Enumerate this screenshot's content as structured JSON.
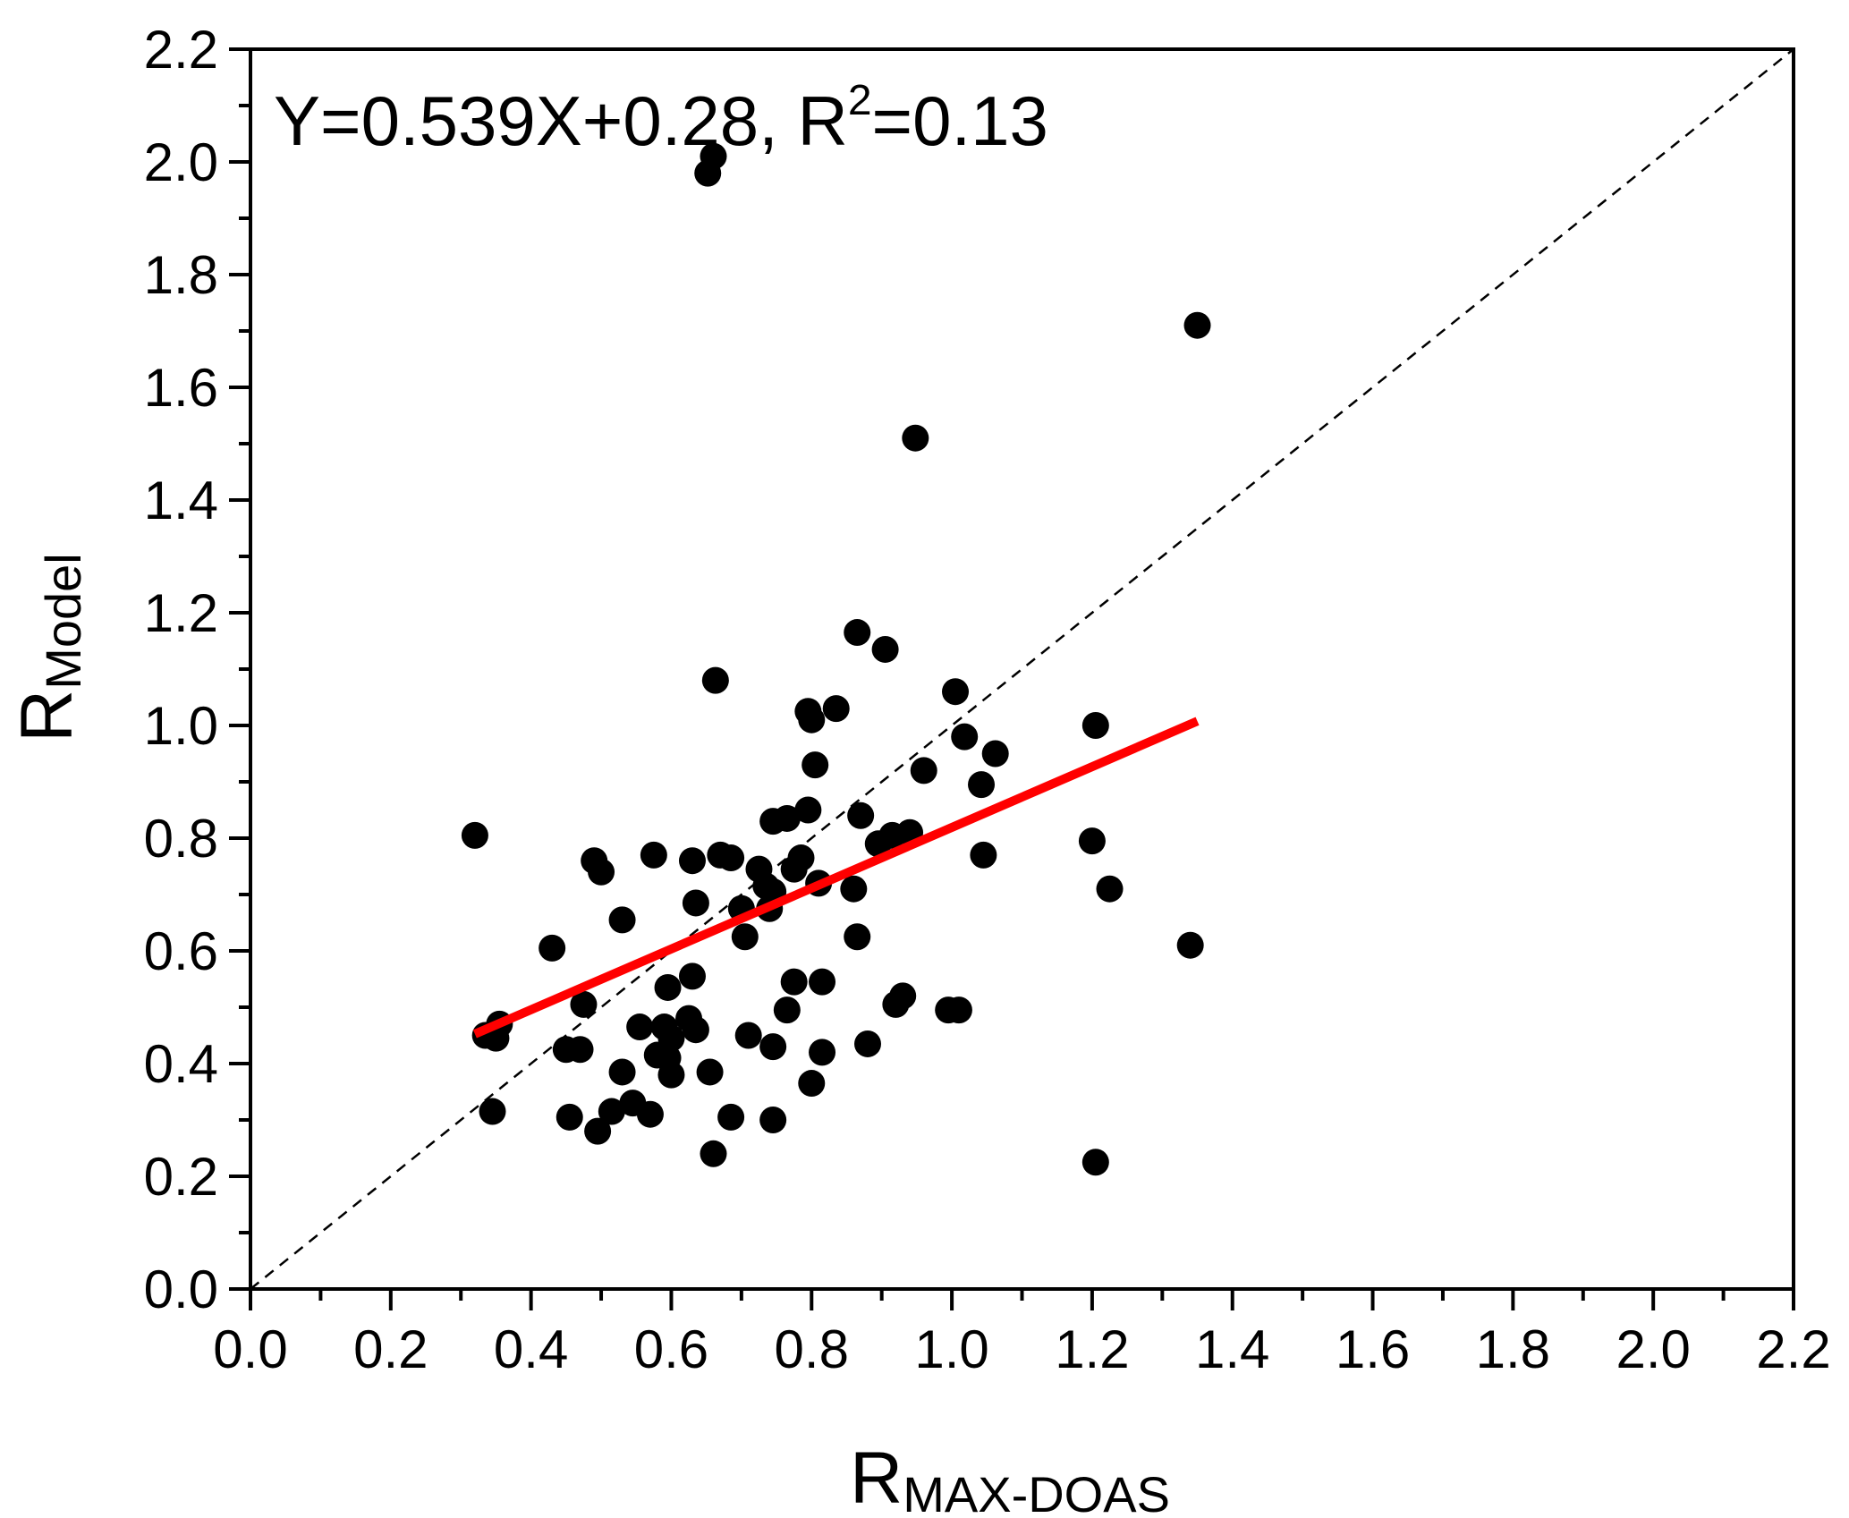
{
  "chart_data": {
    "type": "scatter",
    "title": "",
    "annotation": {
      "lead": "Y=0.539X+0.28, R",
      "superscript": "2",
      "tail": "=0.13"
    },
    "xlabel": {
      "main": "R",
      "subscript": "MAX-DOAS"
    },
    "ylabel": {
      "main": "R",
      "subscript": "Model"
    },
    "xlim": [
      0.0,
      2.2
    ],
    "ylim": [
      0.0,
      2.2
    ],
    "xticks": [
      "0.0",
      "0.2",
      "0.4",
      "0.6",
      "0.8",
      "1.0",
      "1.2",
      "1.4",
      "1.6",
      "1.8",
      "2.0",
      "2.2"
    ],
    "yticks": [
      "0.0",
      "0.2",
      "0.4",
      "0.6",
      "0.8",
      "1.0",
      "1.2",
      "1.4",
      "1.6",
      "1.8",
      "2.0",
      "2.2"
    ],
    "grid": false,
    "legend": "none",
    "colors": {
      "points": "#000000",
      "fit_line": "#ff0000",
      "identity_line": "#000000"
    },
    "fit_line": {
      "slope": 0.539,
      "intercept": 0.28,
      "x_range": [
        0.32,
        1.35
      ]
    },
    "identity_line": {
      "style": "dashed",
      "from": [
        0.0,
        0.0
      ],
      "to": [
        2.2,
        2.2
      ]
    },
    "points": [
      [
        0.652,
        1.98
      ],
      [
        0.66,
        2.01
      ],
      [
        1.35,
        1.71
      ],
      [
        0.948,
        1.51
      ],
      [
        0.865,
        1.165
      ],
      [
        0.905,
        1.135
      ],
      [
        0.663,
        1.08
      ],
      [
        1.005,
        1.06
      ],
      [
        0.835,
        1.03
      ],
      [
        0.795,
        1.025
      ],
      [
        0.8,
        1.01
      ],
      [
        1.205,
        1.0
      ],
      [
        1.018,
        0.98
      ],
      [
        1.062,
        0.95
      ],
      [
        0.805,
        0.93
      ],
      [
        0.96,
        0.92
      ],
      [
        1.042,
        0.895
      ],
      [
        0.795,
        0.85
      ],
      [
        0.87,
        0.84
      ],
      [
        0.745,
        0.83
      ],
      [
        0.765,
        0.835
      ],
      [
        0.32,
        0.805
      ],
      [
        0.94,
        0.81
      ],
      [
        0.915,
        0.805
      ],
      [
        0.895,
        0.79
      ],
      [
        1.2,
        0.795
      ],
      [
        0.49,
        0.76
      ],
      [
        0.5,
        0.74
      ],
      [
        0.575,
        0.77
      ],
      [
        0.63,
        0.76
      ],
      [
        0.67,
        0.77
      ],
      [
        0.685,
        0.765
      ],
      [
        0.725,
        0.745
      ],
      [
        0.785,
        0.765
      ],
      [
        0.775,
        0.745
      ],
      [
        0.745,
        0.705
      ],
      [
        0.735,
        0.715
      ],
      [
        0.81,
        0.72
      ],
      [
        0.86,
        0.71
      ],
      [
        1.045,
        0.77
      ],
      [
        1.225,
        0.71
      ],
      [
        0.7,
        0.675
      ],
      [
        0.74,
        0.675
      ],
      [
        0.635,
        0.685
      ],
      [
        0.53,
        0.655
      ],
      [
        0.705,
        0.625
      ],
      [
        0.865,
        0.625
      ],
      [
        1.34,
        0.61
      ],
      [
        0.43,
        0.605
      ],
      [
        0.63,
        0.555
      ],
      [
        0.775,
        0.545
      ],
      [
        0.815,
        0.545
      ],
      [
        0.595,
        0.535
      ],
      [
        0.93,
        0.52
      ],
      [
        0.92,
        0.505
      ],
      [
        0.475,
        0.505
      ],
      [
        0.765,
        0.495
      ],
      [
        0.995,
        0.495
      ],
      [
        1.01,
        0.495
      ],
      [
        0.355,
        0.47
      ],
      [
        0.555,
        0.465
      ],
      [
        0.59,
        0.465
      ],
      [
        0.625,
        0.48
      ],
      [
        0.635,
        0.46
      ],
      [
        0.335,
        0.45
      ],
      [
        0.35,
        0.445
      ],
      [
        0.71,
        0.45
      ],
      [
        0.6,
        0.445
      ],
      [
        0.45,
        0.425
      ],
      [
        0.47,
        0.425
      ],
      [
        0.745,
        0.43
      ],
      [
        0.815,
        0.42
      ],
      [
        0.88,
        0.435
      ],
      [
        0.58,
        0.415
      ],
      [
        0.595,
        0.41
      ],
      [
        0.53,
        0.385
      ],
      [
        0.6,
        0.38
      ],
      [
        0.655,
        0.385
      ],
      [
        0.8,
        0.365
      ],
      [
        0.545,
        0.33
      ],
      [
        0.515,
        0.315
      ],
      [
        0.345,
        0.315
      ],
      [
        0.455,
        0.305
      ],
      [
        0.57,
        0.31
      ],
      [
        0.685,
        0.305
      ],
      [
        0.745,
        0.3
      ],
      [
        0.495,
        0.28
      ],
      [
        0.66,
        0.24
      ],
      [
        1.205,
        0.225
      ]
    ]
  }
}
